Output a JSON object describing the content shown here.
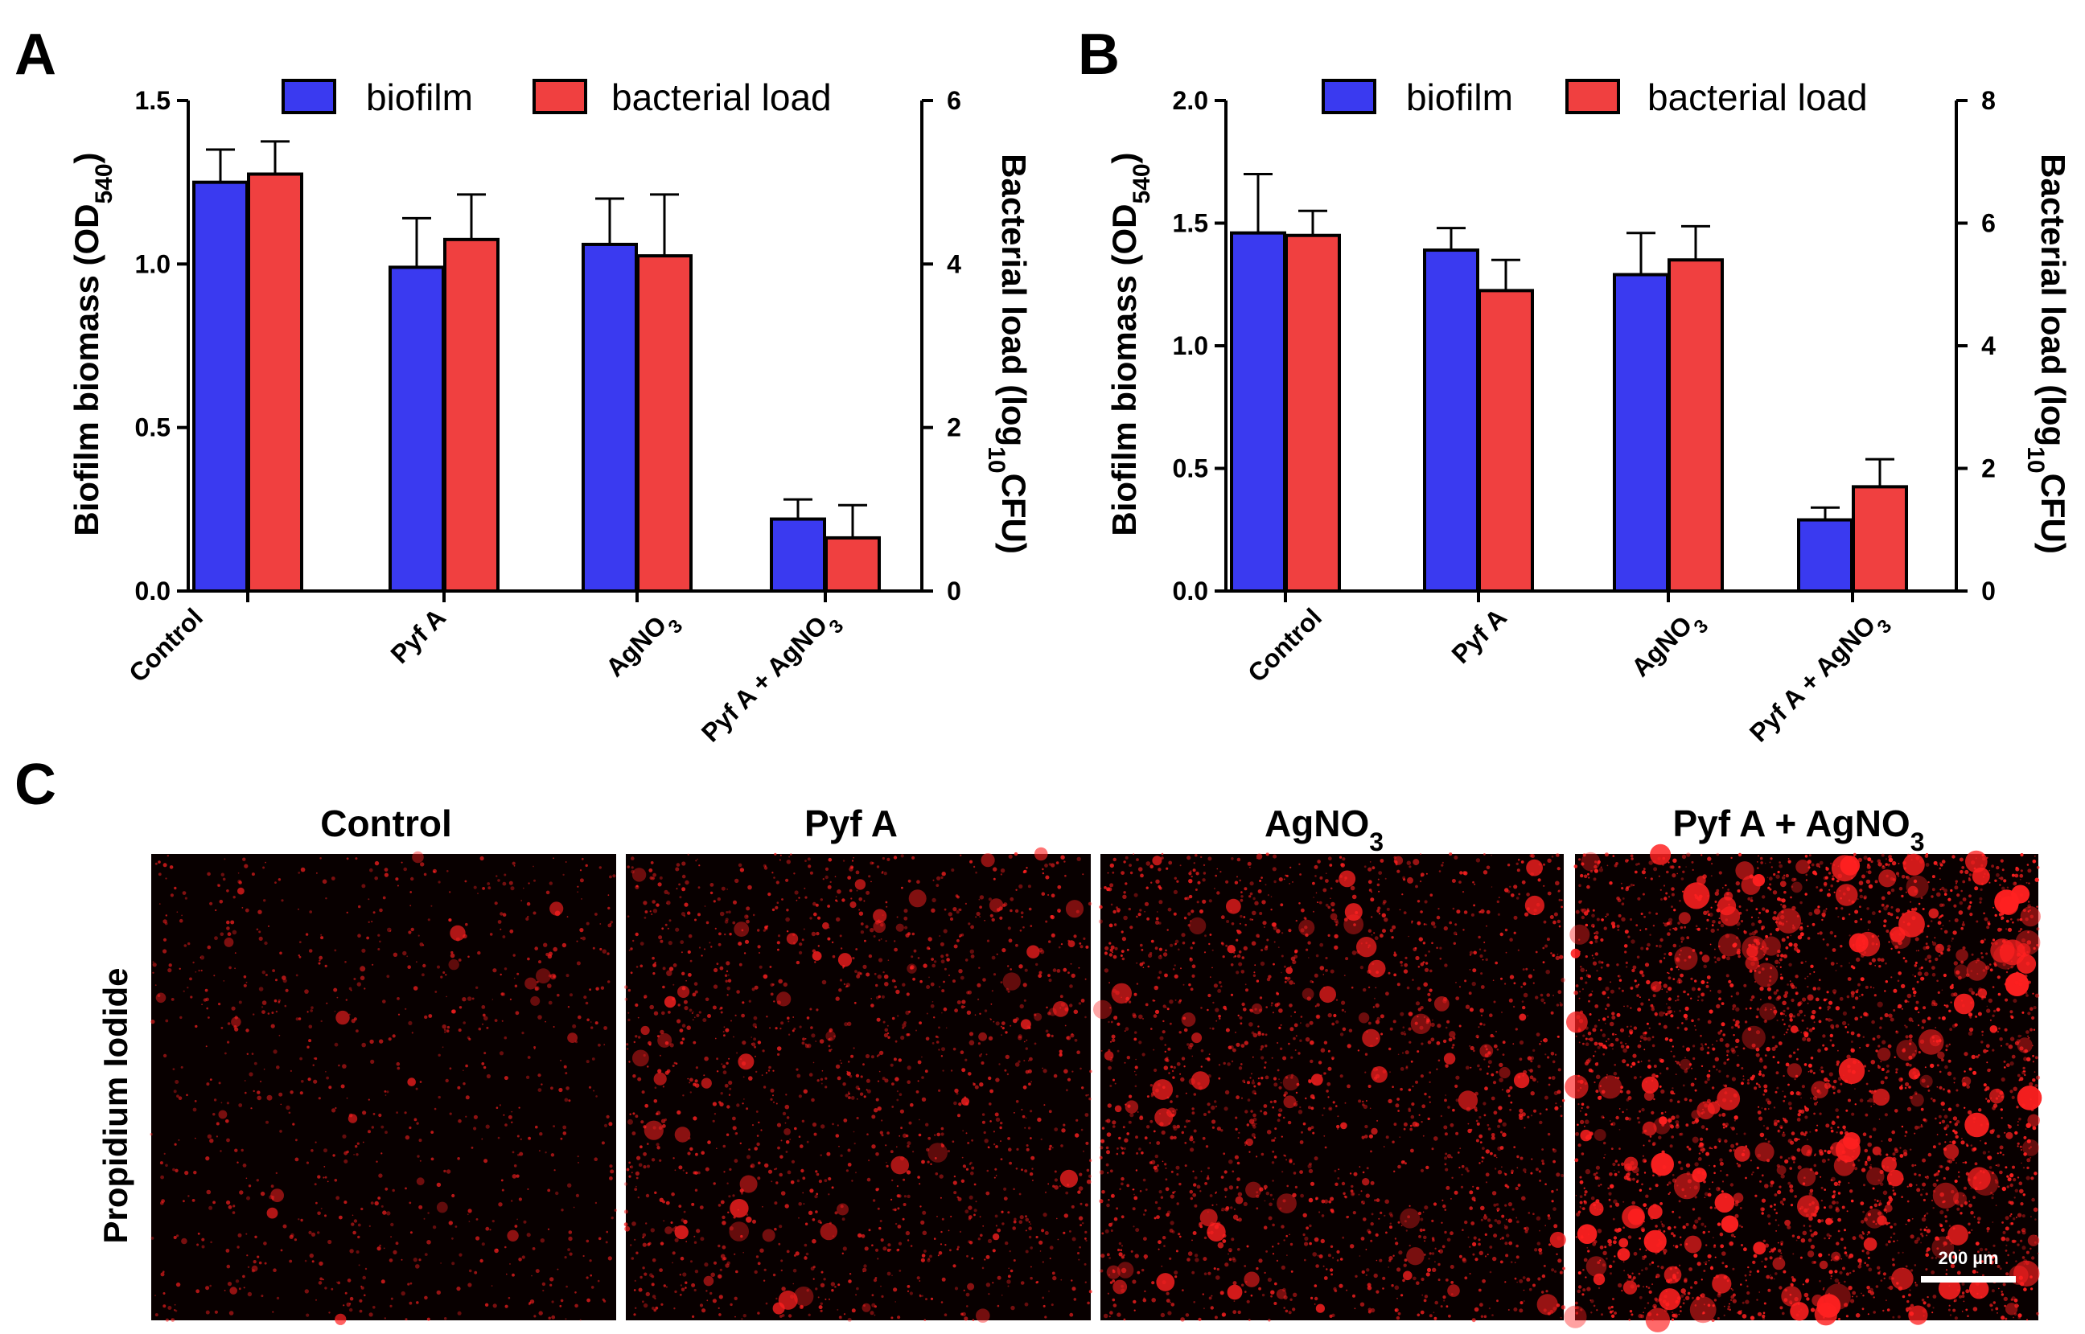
{
  "chart_data": [
    {
      "panel": "A",
      "type": "bar",
      "categories": [
        "Control",
        "Pyf A",
        "AgNO3",
        "Pyf A + AgNO3"
      ],
      "series": [
        {
          "name": "biofilm",
          "axis": "left",
          "color": "#3a3af0",
          "values": [
            1.25,
            0.99,
            1.06,
            0.22
          ],
          "errors": [
            0.1,
            0.15,
            0.14,
            0.06
          ]
        },
        {
          "name": "bacterial load",
          "axis": "right",
          "color": "#f04040",
          "values": [
            5.1,
            4.3,
            4.1,
            0.65
          ],
          "errors": [
            0.4,
            0.55,
            0.75,
            0.4
          ]
        }
      ],
      "ylabel_left": "Biofilm biomass (OD540)",
      "ylabel_right": "Bacterial load (log10CFU)",
      "ylim_left": [
        0,
        1.5
      ],
      "yticks_left": [
        "0.0",
        "0.5",
        "1.0",
        "1.5"
      ],
      "ylim_right": [
        0,
        6
      ],
      "yticks_right": [
        "0",
        "2",
        "4",
        "6"
      ],
      "legend_position": "top"
    },
    {
      "panel": "B",
      "type": "bar",
      "categories": [
        "Control",
        "Pyf A",
        "AgNO3",
        "Pyf A + AgNO3"
      ],
      "series": [
        {
          "name": "biofilm",
          "axis": "left",
          "color": "#3a3af0",
          "values": [
            1.46,
            1.39,
            1.29,
            0.29
          ],
          "errors": [
            0.24,
            0.09,
            0.17,
            0.05
          ]
        },
        {
          "name": "bacterial load",
          "axis": "right",
          "color": "#f04040",
          "values": [
            5.8,
            4.9,
            5.4,
            1.7
          ],
          "errors": [
            0.4,
            0.5,
            0.55,
            0.45
          ]
        }
      ],
      "ylabel_left": "Biofilm biomass (OD540)",
      "ylabel_right": "Bacterial load (log10CFU)",
      "ylim_left": [
        0,
        2.0
      ],
      "yticks_left": [
        "0.0",
        "0.5",
        "1.0",
        "1.5",
        "2.0"
      ],
      "ylim_right": [
        0,
        8
      ],
      "yticks_right": [
        "0",
        "2",
        "4",
        "6",
        "8"
      ],
      "legend_position": "top"
    }
  ],
  "panel_labels": {
    "a": "A",
    "b": "B",
    "c": "C"
  },
  "category_labels": {
    "control": "Control",
    "pyf": "Pyf A",
    "ag_main": "AgNO",
    "ag_sub": "3",
    "combo_main": "Pyf A + AgNO",
    "combo_sub": "3"
  },
  "ylabel_left_parts": {
    "main": "Biofilm biomass (OD",
    "sub": "540",
    "end": ")"
  },
  "ylabel_right_parts": {
    "main": "Bacterial load (log",
    "sub": "10",
    "end": "CFU)"
  },
  "legend": {
    "biofilm": "biofilm",
    "load": "bacterial load"
  },
  "colors": {
    "biofilm": "#3a3af0",
    "load": "#f04040",
    "micrograph_bg": "#080000",
    "stain": "#ff2020"
  },
  "panel_c": {
    "titles": [
      "Control",
      "Pyf A",
      "AgNO",
      "Pyf A + AgNO"
    ],
    "title_subs": [
      "",
      "",
      "3",
      "3"
    ],
    "side_label": "Propidium Iodide",
    "scale_bar": "200 µm",
    "stain_density": [
      0.18,
      0.42,
      0.55,
      0.95
    ]
  }
}
